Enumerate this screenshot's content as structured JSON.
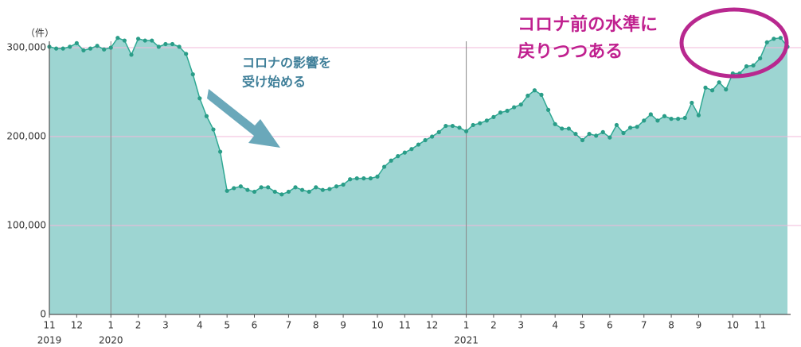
{
  "chart_data": {
    "type": "area",
    "y_unit": "（件）",
    "annotations": [
      {
        "lines": [
          "コロナの影響を",
          "受け始める"
        ],
        "color": "#3f7f99"
      },
      {
        "lines": [
          "コロナ前の水準に",
          "戻りつつある"
        ],
        "color": "#c0208f"
      }
    ],
    "categories": [
      "11",
      null,
      null,
      null,
      "12",
      null,
      null,
      null,
      null,
      "1",
      null,
      null,
      null,
      "2",
      null,
      null,
      null,
      "3",
      null,
      null,
      null,
      null,
      "4",
      null,
      null,
      null,
      "5",
      null,
      null,
      null,
      "6",
      null,
      null,
      null,
      null,
      "7",
      null,
      null,
      null,
      "8",
      null,
      null,
      null,
      "9",
      null,
      null,
      null,
      null,
      "10",
      null,
      null,
      null,
      "11",
      null,
      null,
      null,
      "12",
      null,
      null,
      null,
      null,
      "1",
      null,
      null,
      null,
      "2",
      null,
      null,
      null,
      "3",
      null,
      null,
      null,
      null,
      "4",
      null,
      null,
      null,
      "5",
      null,
      null,
      null,
      "6",
      null,
      null,
      null,
      null,
      "7",
      null,
      null,
      null,
      "8",
      null,
      null,
      null,
      "9",
      null,
      null,
      null,
      null,
      "10",
      null,
      null,
      null,
      "11",
      null,
      null,
      null,
      null
    ],
    "category_years": [
      "2019",
      null,
      null,
      null,
      null,
      null,
      null,
      null,
      null,
      "2020",
      null,
      null,
      null,
      null,
      null,
      null,
      null,
      null,
      null,
      null,
      null,
      null,
      null,
      null,
      null,
      null,
      null,
      null,
      null,
      null,
      null,
      null,
      null,
      null,
      null,
      null,
      null,
      null,
      null,
      null,
      null,
      null,
      null,
      null,
      null,
      null,
      null,
      null,
      null,
      null,
      null,
      null,
      null,
      null,
      null,
      null,
      null,
      null,
      null,
      null,
      null,
      "2021",
      null,
      null,
      null,
      null,
      null,
      null,
      null,
      null,
      null,
      null,
      null,
      null,
      null,
      null,
      null,
      null,
      null,
      null,
      null,
      null,
      null,
      null,
      null,
      null,
      null,
      null,
      null,
      null,
      null,
      null,
      null,
      null,
      null,
      null,
      null,
      null,
      null,
      null,
      null,
      null,
      null,
      null,
      null,
      null,
      null,
      null,
      null
    ],
    "values": [
      301000,
      299000,
      299000,
      301000,
      305000,
      297000,
      299000,
      302000,
      298000,
      300000,
      311000,
      308000,
      292000,
      310000,
      308000,
      308000,
      301000,
      304000,
      304000,
      301000,
      293000,
      270000,
      243000,
      223000,
      208000,
      183000,
      139000,
      142000,
      144000,
      140000,
      138000,
      143000,
      143000,
      138000,
      135000,
      138000,
      143000,
      140000,
      138000,
      143000,
      140000,
      141000,
      144000,
      146000,
      152000,
      153000,
      153000,
      153000,
      155000,
      166000,
      173000,
      178000,
      182000,
      186000,
      191000,
      196000,
      200000,
      205000,
      212000,
      212000,
      210000,
      206000,
      213000,
      215000,
      218000,
      222000,
      227000,
      229000,
      233000,
      236000,
      246000,
      252000,
      247000,
      230000,
      214000,
      209000,
      209000,
      203000,
      196000,
      203000,
      201000,
      205000,
      199000,
      213000,
      204000,
      210000,
      211000,
      218000,
      225000,
      218000,
      223000,
      220000,
      220000,
      221000,
      238000,
      224000,
      255000,
      252000,
      261000,
      253000,
      271000,
      271000,
      279000,
      280000,
      288000,
      306000,
      310000,
      311000,
      301000
    ],
    "fill_color": "#9dd5d2",
    "line_color": "#2fa893",
    "marker_color": "#2a9d88",
    "ylim": [
      0,
      300000
    ],
    "yticks": [
      0,
      {
        "value": 100000,
        "label": "100,000"
      },
      {
        "value": 200000,
        "label": "200,000"
      },
      {
        "value": 300000,
        "label": "300,000"
      }
    ],
    "grid": true,
    "grid_color": "#f2b8da"
  }
}
